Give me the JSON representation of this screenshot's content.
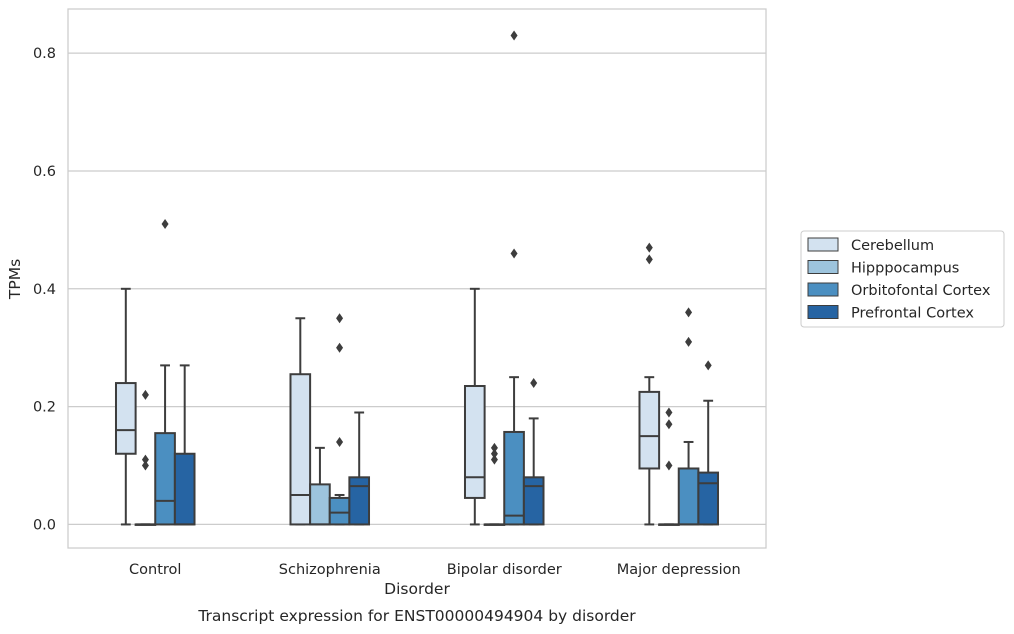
{
  "chart_data": {
    "type": "box",
    "title": "",
    "caption": "Transcript expression for ENST00000494904 by disorder",
    "xlabel": "Disorder",
    "ylabel": "TPMs",
    "ylim": [
      -0.04,
      0.875
    ],
    "yticks": [
      0.0,
      0.2,
      0.4,
      0.6,
      0.8
    ],
    "ytick_labels": [
      "0.0",
      "0.2",
      "0.4",
      "0.6",
      "0.8"
    ],
    "grid": "horizontal",
    "legend_position": "right",
    "categories": [
      "Control",
      "Schizophrenia",
      "Bipolar disorder",
      "Major depression"
    ],
    "series": [
      {
        "name": "Cerebellum",
        "color": "#d3e2f0",
        "boxes": [
          {
            "whislo": 0.0,
            "q1": 0.12,
            "med": 0.16,
            "q3": 0.24,
            "whishi": 0.4,
            "fliers": []
          },
          {
            "whislo": 0.0,
            "q1": 0.0,
            "med": 0.05,
            "q3": 0.255,
            "whishi": 0.35,
            "fliers": []
          },
          {
            "whislo": 0.0,
            "q1": 0.045,
            "med": 0.08,
            "q3": 0.235,
            "whishi": 0.4,
            "fliers": []
          },
          {
            "whislo": 0.0,
            "q1": 0.095,
            "med": 0.15,
            "q3": 0.225,
            "whishi": 0.25,
            "fliers": [
              0.45,
              0.47
            ]
          }
        ]
      },
      {
        "name": "Hipppocampus",
        "color": "#9dc4dd",
        "boxes": [
          {
            "whislo": 0.0,
            "q1": 0.0,
            "med": 0.0,
            "q3": 0.0,
            "whishi": 0.0,
            "fliers": [
              0.1,
              0.11,
              0.22
            ]
          },
          {
            "whislo": 0.0,
            "q1": 0.0,
            "med": 0.0,
            "q3": 0.068,
            "whishi": 0.13,
            "fliers": []
          },
          {
            "whislo": 0.0,
            "q1": 0.0,
            "med": 0.0,
            "q3": 0.0,
            "whishi": 0.0,
            "fliers": [
              0.11,
              0.12,
              0.13
            ]
          },
          {
            "whislo": 0.0,
            "q1": 0.0,
            "med": 0.0,
            "q3": 0.0,
            "whishi": 0.0,
            "fliers": [
              0.1,
              0.17,
              0.19
            ]
          }
        ]
      },
      {
        "name": "Orbitofontal Cortex",
        "color": "#4b8fc1",
        "boxes": [
          {
            "whislo": 0.0,
            "q1": 0.0,
            "med": 0.04,
            "q3": 0.155,
            "whishi": 0.27,
            "fliers": [
              0.51
            ]
          },
          {
            "whislo": 0.0,
            "q1": 0.0,
            "med": 0.02,
            "q3": 0.045,
            "whishi": 0.05,
            "fliers": [
              0.14,
              0.3,
              0.35
            ]
          },
          {
            "whislo": 0.0,
            "q1": 0.0,
            "med": 0.015,
            "q3": 0.157,
            "whishi": 0.25,
            "fliers": [
              0.46,
              0.83
            ]
          },
          {
            "whislo": 0.0,
            "q1": 0.0,
            "med": 0.0,
            "q3": 0.095,
            "whishi": 0.14,
            "fliers": [
              0.31,
              0.36
            ]
          }
        ]
      },
      {
        "name": "Prefrontal Cortex",
        "color": "#2664a3",
        "boxes": [
          {
            "whislo": 0.0,
            "q1": 0.0,
            "med": 0.0,
            "q3": 0.12,
            "whishi": 0.27,
            "fliers": []
          },
          {
            "whislo": 0.0,
            "q1": 0.0,
            "med": 0.065,
            "q3": 0.08,
            "whishi": 0.19,
            "fliers": []
          },
          {
            "whislo": 0.0,
            "q1": 0.0,
            "med": 0.065,
            "q3": 0.08,
            "whishi": 0.18,
            "fliers": [
              0.24
            ]
          },
          {
            "whislo": 0.0,
            "q1": 0.0,
            "med": 0.07,
            "q3": 0.088,
            "whishi": 0.21,
            "fliers": [
              0.27
            ]
          }
        ]
      }
    ]
  }
}
